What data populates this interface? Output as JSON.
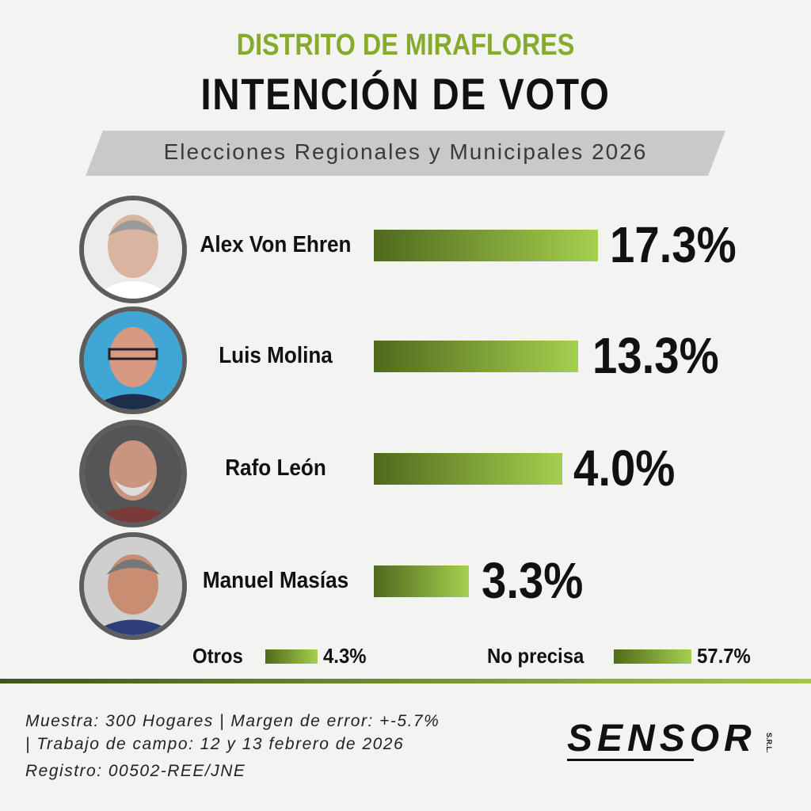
{
  "header": {
    "title": "DISTRITO DE MIRAFLORES",
    "subtitle": "INTENCIÓN DE VOTO",
    "banner": "Elecciones Regionales y Municipales 2026"
  },
  "candidates": [
    {
      "name": "Alex Von Ehren",
      "result": "17.3%"
    },
    {
      "name": "Luis Molina",
      "result": "13.3%"
    },
    {
      "name": "Rafo León",
      "result": "4.0%"
    },
    {
      "name": "Manuel Masías",
      "result": "3.3%"
    }
  ],
  "others": [
    {
      "label": "Otros",
      "result": "4.3%"
    },
    {
      "label": "No precisa",
      "result": "57.7%"
    }
  ],
  "footer": {
    "lines": [
      "Muestra: 300 Hogares | Margen de error: +-5.7%",
      "| Trabajo de campo: 12 y 13 febrero de 2026",
      "Registro: 00502-REE/JNE"
    ],
    "logo": "SENSOR",
    "logo_suffix": "S.R.L."
  }
}
